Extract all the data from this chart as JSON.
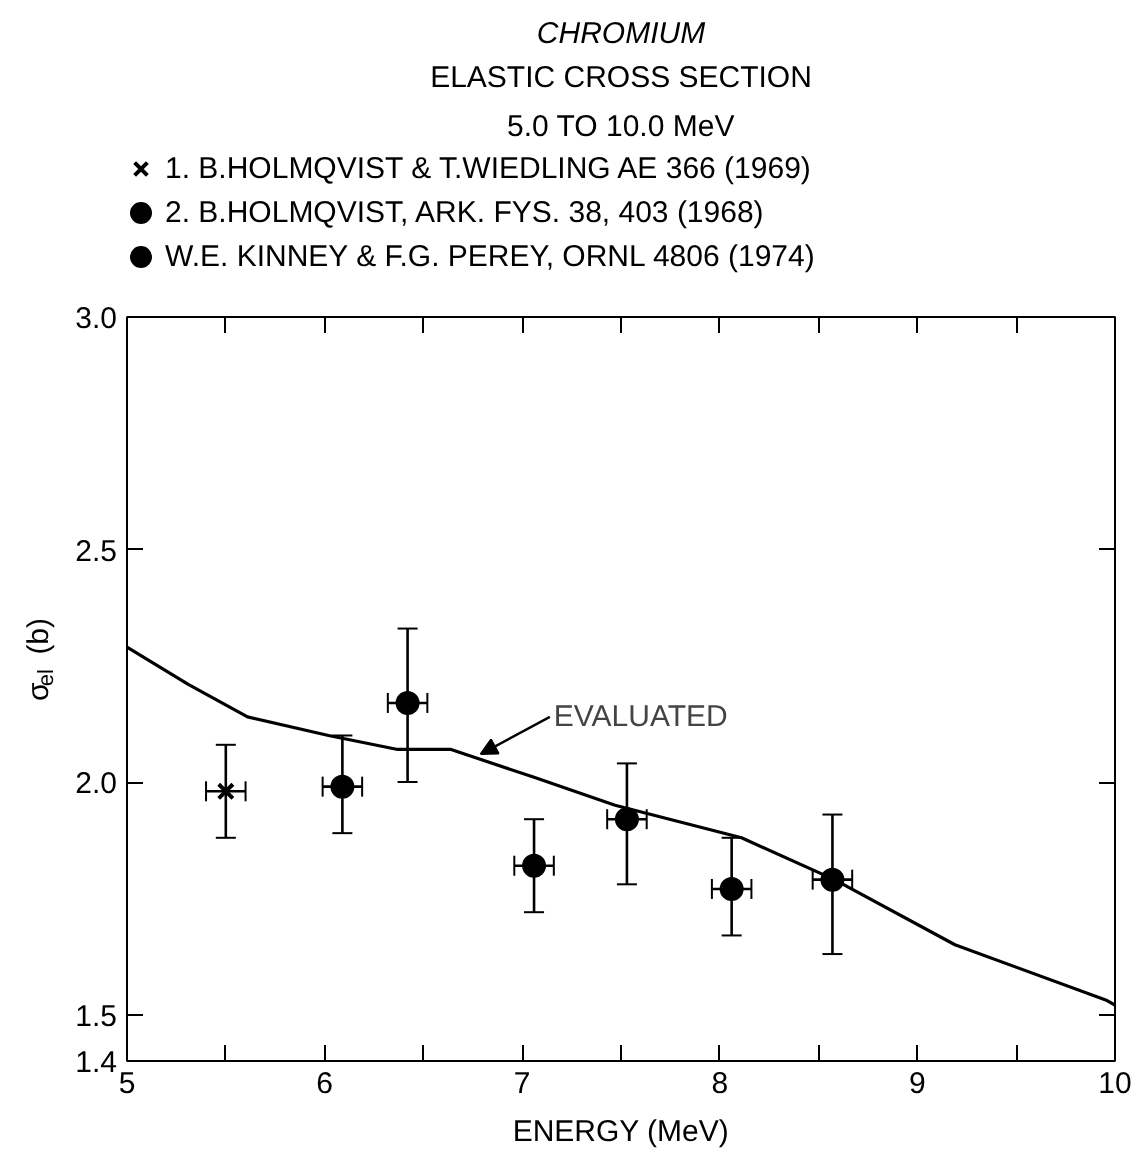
{
  "chart_data": {
    "type": "scatter",
    "title": "CHROMIUM",
    "subtitle": "ELASTIC CROSS SECTION\n5.0 TO 10.0 MeV",
    "xlabel": "ENERGY (MeV)",
    "ylabel": "σ$_{el}$ (b)",
    "xlim": [
      5,
      10
    ],
    "ylim": [
      1.4,
      3.0
    ],
    "xticks": [
      5,
      {
        "value": 5.5,
        "label": null
      },
      6,
      {
        "value": 6.5,
        "label": null
      },
      7,
      {
        "value": 7.5,
        "label": null
      },
      8,
      {
        "value": 8.5,
        "label": null
      },
      9,
      {
        "value": 9.5,
        "label": null
      },
      10
    ],
    "yticks": [
      1.4,
      1.5,
      {
        "value": 2.0,
        "label": "2.0"
      },
      2.5,
      {
        "value": 3.0,
        "label": "3.0"
      }
    ],
    "grid": false,
    "legend": "top",
    "series": [
      {
        "name": "1. B.HOLMQVIST & T.WIEDLING AE 366 (1969)",
        "color": "#000000",
        "marker": "cross",
        "x": [
          5.5
        ],
        "values": [
          1.98
        ],
        "errors": [
          [
            1.88,
            2.08
          ]
        ],
        "xerrors": [
          0.1
        ]
      },
      {
        "name": "2. B.HOLMQVIST, ARK. FYS. 38, 403 (1968)",
        "color": "#000000",
        "marker": "circle",
        "x": [
          6.09,
          7.06,
          8.06
        ],
        "values": [
          1.99,
          1.82,
          1.77
        ],
        "errors": [
          [
            1.89,
            2.1
          ],
          [
            1.72,
            1.92
          ],
          [
            1.67,
            1.88
          ]
        ],
        "xerrors": [
          0.1,
          0.1,
          0.1
        ]
      },
      {
        "name": "W.E. KINNEY & F.G. PEREY, ORNL 4806 (1974)",
        "color": "#000000",
        "marker": "circle",
        "x": [
          6.42,
          7.53,
          8.57
        ],
        "values": [
          2.17,
          1.92,
          1.79
        ],
        "errors": [
          [
            2.0,
            2.33
          ],
          [
            1.78,
            2.04
          ],
          [
            1.63,
            1.93
          ]
        ],
        "xerrors": [
          0.1,
          0.1,
          0.1
        ]
      },
      {
        "type": "line",
        "color": "#000000",
        "marker": "none",
        "x": [
          5.0,
          5.31,
          5.61,
          6.02,
          6.37,
          6.64,
          7.06,
          7.47,
          8.11,
          8.58,
          9.19,
          9.96,
          10.0
        ],
        "values": [
          2.29,
          2.21,
          2.14,
          2.1,
          2.07,
          2.07,
          2.01,
          1.95,
          1.88,
          1.79,
          1.65,
          1.53,
          1.52
        ]
      }
    ],
    "annotations": [
      {
        "text": "EVALUATED",
        "x": 6.79,
        "y": 2.06
      }
    ]
  }
}
